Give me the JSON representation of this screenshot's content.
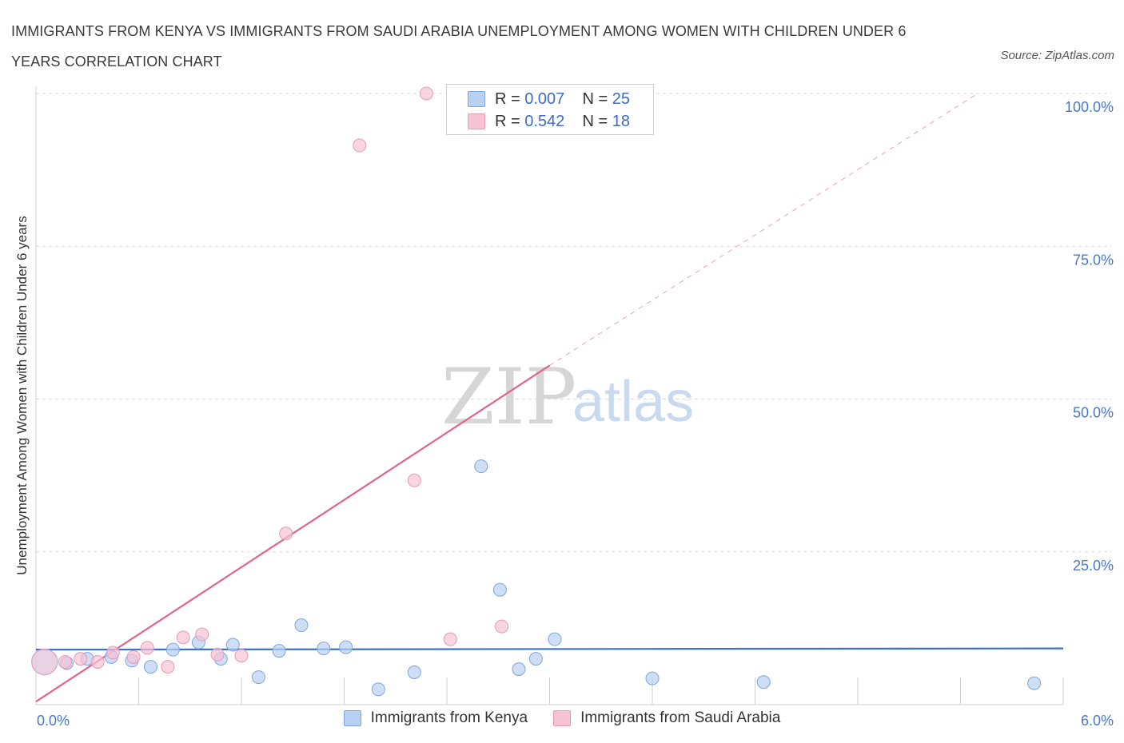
{
  "title": "IMMIGRANTS FROM KENYA VS IMMIGRANTS FROM SAUDI ARABIA UNEMPLOYMENT AMONG WOMEN WITH CHILDREN UNDER 6 YEARS CORRELATION CHART",
  "source": "Source: ZipAtlas.com",
  "watermark": {
    "zip": "ZIP",
    "atlas": "atlas"
  },
  "legend": {
    "rows": [
      {
        "r_label": "R =",
        "r_value": "0.007",
        "n_label": "N =",
        "n_value": "25"
      },
      {
        "r_label": "R =",
        "r_value": "0.542",
        "n_label": "N =",
        "n_value": "18"
      }
    ]
  },
  "colors": {
    "kenya_fill": "#b8d0f2",
    "kenya_stroke": "#7fa6de",
    "kenya_line": "#3a72c9",
    "saudi_fill": "#f7c2d4",
    "saudi_stroke": "#e79ab4",
    "saudi_line": "#e0648e",
    "grid": "#d9d9d9",
    "tick_text": "#4a78c8"
  },
  "chart_data": {
    "type": "scatter",
    "title": "IMMIGRANTS FROM KENYA VS IMMIGRANTS FROM SAUDI ARABIA UNEMPLOYMENT AMONG WOMEN WITH CHILDREN UNDER 6 YEARS CORRELATION CHART",
    "xlabel": "",
    "ylabel": "Unemployment Among Women with Children Under 6 years",
    "xlim": [
      0,
      6
    ],
    "ylim": [
      0,
      100
    ],
    "x_tick_labels": [
      "0.0%",
      "6.0%"
    ],
    "y_tick_labels": [
      {
        "value": 100,
        "label": "100.0%"
      },
      {
        "value": 75,
        "label": "75.0%"
      },
      {
        "value": 50,
        "label": "50.0%"
      },
      {
        "value": 25,
        "label": "25.0%"
      }
    ],
    "grid": true,
    "legend_position": "top-center",
    "series": [
      {
        "name": "Immigrants from Kenya",
        "color": "#b8d0f2",
        "R": 0.007,
        "N": 25,
        "trend": {
          "x": [
            0,
            6
          ],
          "y": [
            9.0,
            9.2
          ],
          "style": "solid"
        },
        "points": [
          {
            "x": 0.05,
            "y": 7.0,
            "big": true
          },
          {
            "x": 0.18,
            "y": 6.8
          },
          {
            "x": 0.3,
            "y": 7.5
          },
          {
            "x": 0.44,
            "y": 7.8
          },
          {
            "x": 0.56,
            "y": 7.2
          },
          {
            "x": 0.67,
            "y": 6.2
          },
          {
            "x": 0.8,
            "y": 9.0
          },
          {
            "x": 0.95,
            "y": 10.2
          },
          {
            "x": 1.08,
            "y": 7.5
          },
          {
            "x": 1.15,
            "y": 9.8
          },
          {
            "x": 1.3,
            "y": 4.5
          },
          {
            "x": 1.42,
            "y": 8.8
          },
          {
            "x": 1.55,
            "y": 13.0
          },
          {
            "x": 1.68,
            "y": 9.2
          },
          {
            "x": 1.81,
            "y": 9.4
          },
          {
            "x": 2.0,
            "y": 2.5
          },
          {
            "x": 2.21,
            "y": 5.3
          },
          {
            "x": 2.6,
            "y": 39.0
          },
          {
            "x": 2.71,
            "y": 18.8
          },
          {
            "x": 2.82,
            "y": 5.8
          },
          {
            "x": 2.92,
            "y": 7.5
          },
          {
            "x": 3.03,
            "y": 10.7
          },
          {
            "x": 3.6,
            "y": 4.3
          },
          {
            "x": 4.25,
            "y": 3.7
          },
          {
            "x": 5.83,
            "y": 3.5
          }
        ]
      },
      {
        "name": "Immigrants from Saudi Arabia",
        "color": "#f7c2d4",
        "R": 0.542,
        "N": 18,
        "trend": {
          "x": [
            0,
            3.0
          ],
          "y": [
            0.5,
            55.5
          ],
          "style": "solid",
          "extended_to": {
            "x": 5.5,
            "y": 100.0
          }
        },
        "points": [
          {
            "x": 0.05,
            "y": 7.0,
            "big": true
          },
          {
            "x": 0.17,
            "y": 7.0
          },
          {
            "x": 0.26,
            "y": 7.5
          },
          {
            "x": 0.36,
            "y": 7.0
          },
          {
            "x": 0.45,
            "y": 8.5
          },
          {
            "x": 0.57,
            "y": 7.8
          },
          {
            "x": 0.65,
            "y": 9.3
          },
          {
            "x": 0.77,
            "y": 6.2
          },
          {
            "x": 0.86,
            "y": 11.0
          },
          {
            "x": 0.97,
            "y": 11.5
          },
          {
            "x": 1.06,
            "y": 8.2
          },
          {
            "x": 1.2,
            "y": 8.0
          },
          {
            "x": 1.46,
            "y": 28.0
          },
          {
            "x": 1.89,
            "y": 91.5
          },
          {
            "x": 2.21,
            "y": 36.7
          },
          {
            "x": 2.28,
            "y": 100.0
          },
          {
            "x": 2.42,
            "y": 10.7
          },
          {
            "x": 2.72,
            "y": 12.8
          }
        ]
      }
    ]
  }
}
